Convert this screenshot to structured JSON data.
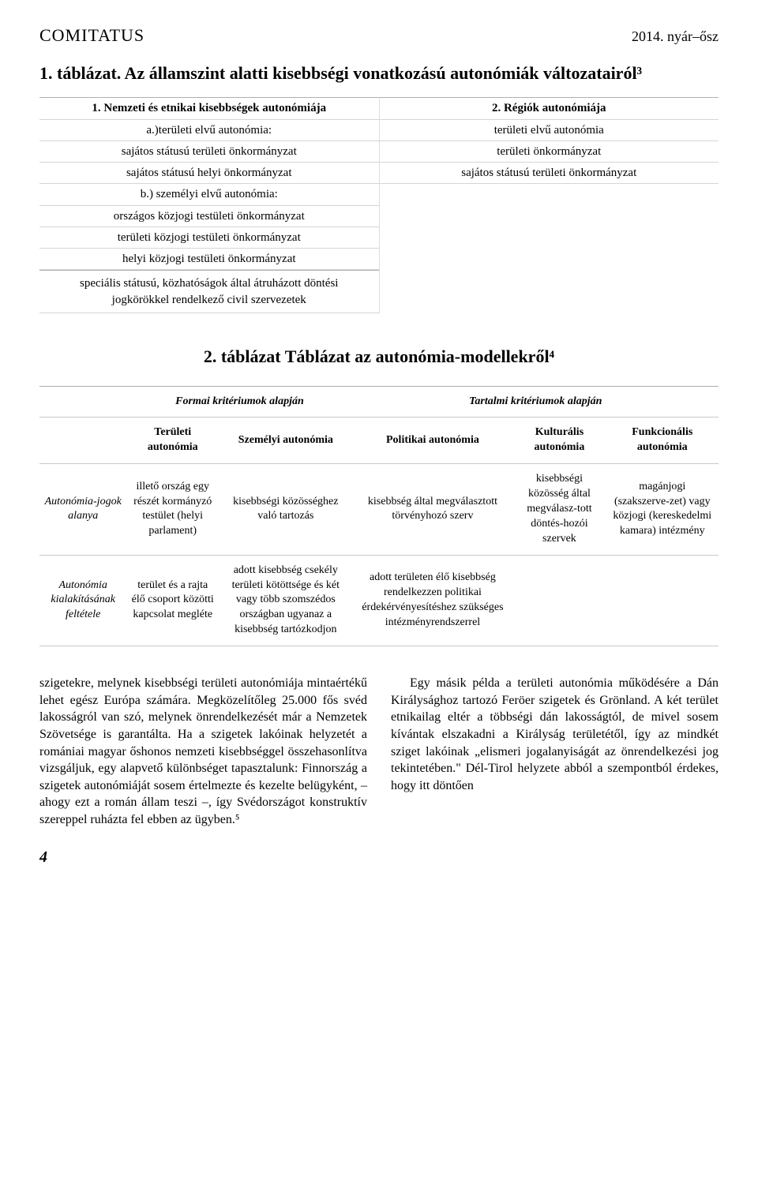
{
  "header": {
    "journal": "COMITATUS",
    "issue": "2014. nyár–ősz"
  },
  "table1": {
    "title": "1. táblázat. Az államszint alatti kisebbségi vonatkozású autonómiák változatairól³",
    "left": {
      "head": "1. Nemzeti és etnikai kisebbségek autonómiája",
      "a_head": "a.)területi elvű autonómia:",
      "a1": "sajátos státusú területi önkormányzat",
      "a2": "sajátos státusú helyi önkormányzat",
      "b_head": "b.) személyi elvű autonómia:",
      "b1": "országos közjogi testületi önkormányzat",
      "b2": "területi közjogi testületi önkormányzat",
      "b3": "helyi közjogi testületi önkormányzat",
      "special": "speciális státusú, közhatóságok által átruházott döntési jogkörökkel rendelkező civil szervezetek"
    },
    "right": {
      "head": "2. Régiók autonómiája",
      "r1": "területi elvű autonómia",
      "r2": "területi önkormányzat",
      "r3": "sajátos státusú területi önkormányzat"
    }
  },
  "table2": {
    "title": "2. táblázat Táblázat az autonómia-modellekről⁴",
    "top_left": "Formai kritériumok alapján",
    "top_right": "Tartalmi kritériumok alapján",
    "cols": {
      "c1": "Területi autonómia",
      "c2": "Személyi autonómia",
      "c3": "Politikai autonómia",
      "c4": "Kulturális autonómia",
      "c5": "Funkcionális autonómia"
    },
    "row1": {
      "label": "Autonómia-jogok alanya",
      "c1": "illető ország egy részét kormányzó testület (helyi parlament)",
      "c2": "kisebbségi közösséghez való tartozás",
      "c3": "kisebbség által megválasztott törvényhozó szerv",
      "c4": "kisebbségi közösség által megválasz-tott döntés-hozói szervek",
      "c5": "magánjogi (szakszerve-zet) vagy közjogi (kereskedelmi kamara) intézmény"
    },
    "row2": {
      "label": "Autonómia kialakításának feltétele",
      "c1": "terület és a rajta élő csoport közötti kapcsolat megléte",
      "c2": "adott kisebbség csekély területi kötöttsége és két vagy több szomszédos országban ugyanaz a kisebbség tartózkodjon",
      "c3": "adott területen élő kisebbség rendelkezzen politikai érdekérvényesítéshez szükséges intézményrendszerrel",
      "c4": "",
      "c5": ""
    }
  },
  "body": {
    "p1": "szigetekre, melynek kisebbségi területi autonómiája mintaértékű lehet egész Európa számára. Megközelítőleg 25.000 fős svéd lakosságról van szó, melynek önrendelkezését már a Nemzetek Szövetsége is garantálta. Ha a szigetek lakóinak helyzetét a romániai magyar őshonos nemzeti kisebbséggel összehasonlítva vizsgáljuk, egy alapvető különbséget tapasztalunk: Finnország a szigetek autonómiáját sosem értelmezte és kezelte belügyként, – ahogy ezt a román állam teszi –, így Svédországot konstruktív szereppel ruházta fel ebben az ügyben.⁵",
    "p2": "Egy másik példa a területi autonómia működésére a Dán Királysághoz tartozó Feröer szigetek és Grönland. A két terület etnikailag eltér a többségi dán lakosságtól, de mivel sosem kívántak elszakadni a Királyság területétől, így az mindkét sziget lakóinak „elismeri jogalanyiságát az önrendelkezési jog tekintetében.\" Dél-Tirol helyzete abból a szempontból érdekes, hogy itt döntően"
  },
  "page_number": "4",
  "colors": {
    "border": "#c8c8c8",
    "text": "#000000",
    "bg": "#ffffff"
  }
}
